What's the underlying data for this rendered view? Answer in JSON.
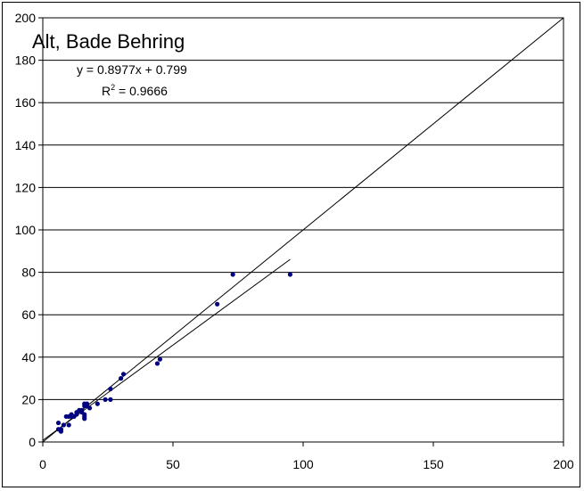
{
  "chart_data": {
    "type": "scatter",
    "title": "Alt, Bade Behring",
    "xlabel": "",
    "ylabel": "",
    "xlim": [
      0,
      200
    ],
    "ylim": [
      0,
      200
    ],
    "xticks": [
      0,
      50,
      100,
      150,
      200
    ],
    "yticks": [
      0,
      20,
      40,
      60,
      80,
      100,
      120,
      140,
      160,
      180,
      200
    ],
    "grid": "horizontal",
    "trendline": {
      "slope": 0.8977,
      "intercept": 0.799,
      "equation_label": "y = 0.8977x + 0.799",
      "r2_label_prefix": "R",
      "r2_label_sup": "2",
      "r2_label_suffix": " = 0.9666",
      "x_range": [
        0,
        95
      ]
    },
    "identity_line": {
      "from": [
        0,
        0
      ],
      "to": [
        200,
        200
      ]
    },
    "marker_color": "#000080",
    "points": [
      [
        6,
        9
      ],
      [
        6,
        6
      ],
      [
        7,
        5
      ],
      [
        7,
        6
      ],
      [
        8,
        8
      ],
      [
        9,
        12
      ],
      [
        10,
        12
      ],
      [
        10,
        8
      ],
      [
        11,
        12
      ],
      [
        11,
        13
      ],
      [
        12,
        12
      ],
      [
        13,
        13
      ],
      [
        13,
        14
      ],
      [
        14,
        15
      ],
      [
        15,
        14
      ],
      [
        15,
        15
      ],
      [
        16,
        12
      ],
      [
        16,
        13
      ],
      [
        16,
        11
      ],
      [
        16,
        17
      ],
      [
        16,
        18
      ],
      [
        17,
        17
      ],
      [
        17,
        18
      ],
      [
        18,
        16
      ],
      [
        21,
        18
      ],
      [
        24,
        20
      ],
      [
        26,
        20
      ],
      [
        26,
        25
      ],
      [
        30,
        30
      ],
      [
        31,
        32
      ],
      [
        44,
        37
      ],
      [
        45,
        39
      ],
      [
        67,
        65
      ],
      [
        73,
        79
      ],
      [
        95,
        79
      ]
    ]
  }
}
